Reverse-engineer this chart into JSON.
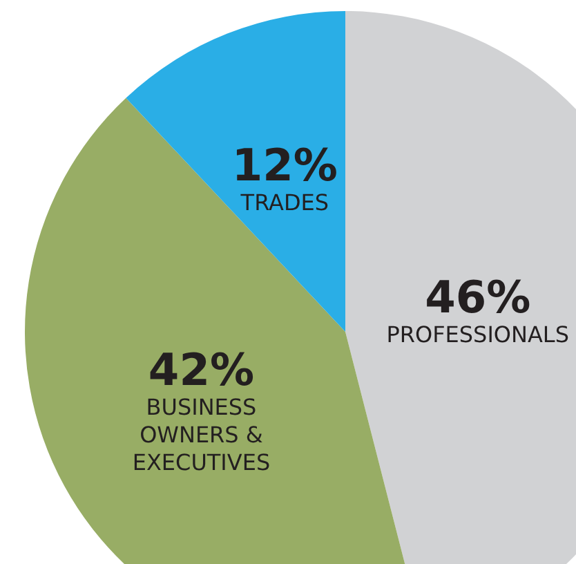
{
  "chart_data": {
    "type": "pie",
    "categories": [
      "PROFESSIONALS",
      "BUSINESS OWNERS & EXECUTIVES",
      "TRADES"
    ],
    "values": [
      46,
      42,
      12
    ],
    "value_labels": [
      "46%",
      "42%",
      "12%"
    ],
    "colors": [
      "#d1d2d4",
      "#98ad65",
      "#2aaee6"
    ],
    "legend": false
  }
}
